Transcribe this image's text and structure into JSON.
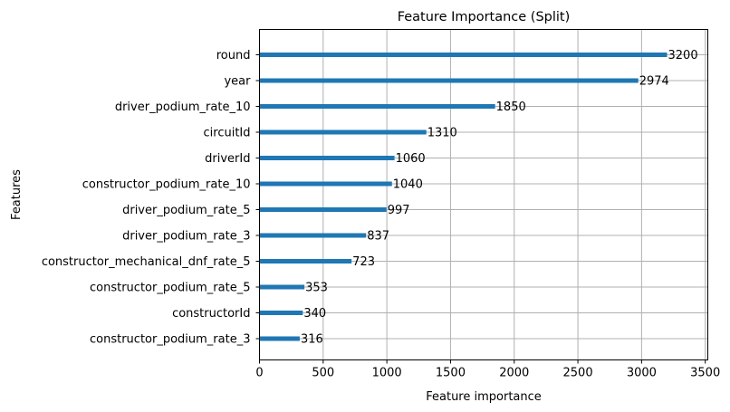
{
  "chart_data": {
    "type": "bar",
    "orientation": "horizontal",
    "title": "Feature Importance (Split)",
    "xlabel": "Feature importance",
    "ylabel": "Features",
    "xlim": [
      0,
      3520
    ],
    "xticks": [
      0,
      500,
      1000,
      1500,
      2000,
      2500,
      3000,
      3500
    ],
    "grid": true,
    "bar_color": "#1f77b4",
    "categories": [
      "round",
      "year",
      "driver_podium_rate_10",
      "circuitId",
      "driverId",
      "constructor_podium_rate_10",
      "driver_podium_rate_5",
      "driver_podium_rate_3",
      "constructor_mechanical_dnf_rate_5",
      "constructor_podium_rate_5",
      "constructorId",
      "constructor_podium_rate_3"
    ],
    "values": [
      3200,
      2974,
      1850,
      1310,
      1060,
      1040,
      997,
      837,
      723,
      353,
      340,
      316
    ],
    "data_labels": [
      "3200",
      "2974",
      "1850",
      "1310",
      "1060",
      "1040",
      "997",
      "837",
      "723",
      "353",
      "340",
      "316"
    ]
  }
}
